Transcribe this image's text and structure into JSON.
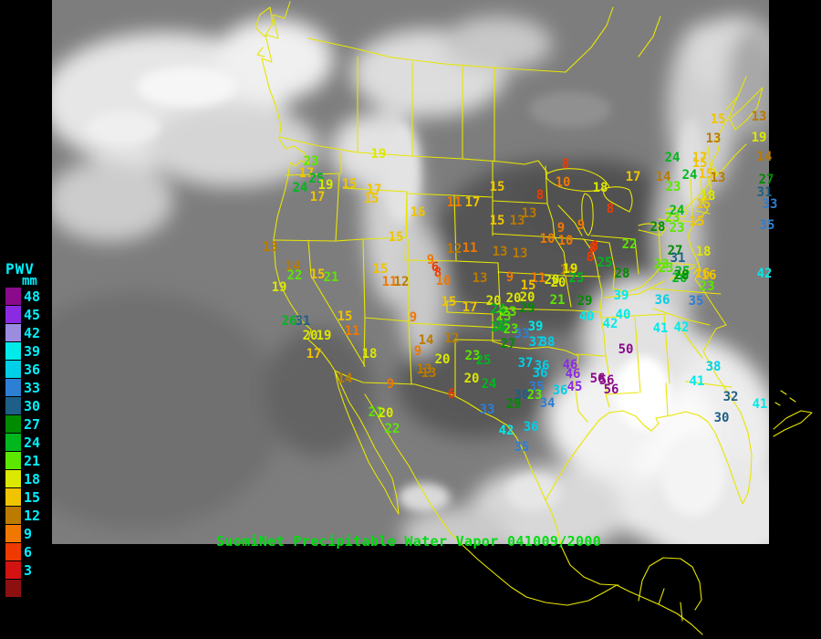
{
  "title_bar": {
    "text": "SuomiNet Precipitable Water Vapor 041009/2000",
    "color": "#00dd11"
  },
  "legend": {
    "title": "PWV",
    "unit": "mm",
    "label_color": "#00f0ff",
    "entries": [
      {
        "value": 48,
        "color": "#8b0a8b"
      },
      {
        "value": 45,
        "color": "#8a2be2"
      },
      {
        "value": 42,
        "color": "#9b8ce0"
      },
      {
        "value": 39,
        "color": "#00eaea"
      },
      {
        "value": 36,
        "color": "#00cfe8"
      },
      {
        "value": 33,
        "color": "#2d7fd4"
      },
      {
        "value": 30,
        "color": "#1d5f86"
      },
      {
        "value": 27,
        "color": "#008c00"
      },
      {
        "value": 24,
        "color": "#00b71e"
      },
      {
        "value": 21,
        "color": "#5ce600"
      },
      {
        "value": 18,
        "color": "#dce800"
      },
      {
        "value": 15,
        "color": "#f0c400"
      },
      {
        "value": 12,
        "color": "#bb7a00"
      },
      {
        "value": 9,
        "color": "#f07800"
      },
      {
        "value": 6,
        "color": "#ee3a00"
      },
      {
        "value": 3,
        "color": "#d31212"
      }
    ],
    "terminal_color": "#8c1010"
  },
  "map": {
    "border_color": "#e8e600",
    "stations": [
      [
        19,
        415,
        169
      ],
      [
        23,
        341,
        177
      ],
      [
        17,
        336,
        190
      ],
      [
        25,
        347,
        196
      ],
      [
        24,
        329,
        206
      ],
      [
        19,
        357,
        203
      ],
      [
        15,
        383,
        202
      ],
      [
        17,
        410,
        208
      ],
      [
        17,
        348,
        216
      ],
      [
        15,
        407,
        218
      ],
      [
        16,
        458,
        233
      ],
      [
        15,
        434,
        260
      ],
      [
        13,
        296,
        271
      ],
      [
        15,
        545,
        205
      ],
      [
        8,
        620,
        180
      ],
      [
        10,
        617,
        200
      ],
      [
        8,
        592,
        214
      ],
      [
        11,
        498,
        222
      ],
      [
        17,
        518,
        222
      ],
      [
        13,
        580,
        234
      ],
      [
        15,
        545,
        242
      ],
      [
        13,
        567,
        242
      ],
      [
        9,
        615,
        250
      ],
      [
        9,
        637,
        247
      ],
      [
        10,
        600,
        262
      ],
      [
        10,
        620,
        264
      ],
      [
        12,
        498,
        273
      ],
      [
        11,
        515,
        272
      ],
      [
        13,
        548,
        276
      ],
      [
        13,
        570,
        278
      ],
      [
        8,
        652,
        270
      ],
      [
        22,
        690,
        268
      ],
      [
        18,
        658,
        206
      ],
      [
        17,
        694,
        194
      ],
      [
        9,
        472,
        285
      ],
      [
        6,
        477,
        293
      ],
      [
        8,
        480,
        299
      ],
      [
        10,
        486,
        308
      ],
      [
        13,
        526,
        305
      ],
      [
        9,
        559,
        304
      ],
      [
        11,
        590,
        305
      ],
      [
        15,
        579,
        313
      ],
      [
        20,
        612,
        310
      ],
      [
        14,
        622,
        296
      ],
      [
        25,
        632,
        305
      ],
      [
        20,
        605,
        307
      ],
      [
        15,
        492,
        331
      ],
      [
        17,
        515,
        337
      ],
      [
        14,
        321,
        292
      ],
      [
        22,
        323,
        302
      ],
      [
        15,
        348,
        301
      ],
      [
        21,
        363,
        304
      ],
      [
        19,
        306,
        315
      ],
      [
        15,
        417,
        295
      ],
      [
        11,
        427,
        309
      ],
      [
        12,
        440,
        309
      ],
      [
        9,
        453,
        348
      ],
      [
        15,
        378,
        347
      ],
      [
        26,
        317,
        352
      ],
      [
        31,
        332,
        352
      ],
      [
        20,
        340,
        368
      ],
      [
        19,
        355,
        368
      ],
      [
        11,
        386,
        363
      ],
      [
        17,
        344,
        388
      ],
      [
        18,
        405,
        388
      ],
      [
        14,
        378,
        415
      ],
      [
        9,
        428,
        421
      ],
      [
        13,
        465,
        405
      ],
      [
        14,
        467,
        373
      ],
      [
        9,
        458,
        385
      ],
      [
        20,
        485,
        394
      ],
      [
        12,
        495,
        371
      ],
      [
        13,
        470,
        409
      ],
      [
        20,
        517,
        415
      ],
      [
        6,
        495,
        432
      ],
      [
        21,
        412,
        452
      ],
      [
        20,
        423,
        453
      ],
      [
        22,
        430,
        470
      ],
      [
        20,
        541,
        330
      ],
      [
        20,
        563,
        327
      ],
      [
        20,
        578,
        326
      ],
      [
        21,
        611,
        329
      ],
      [
        29,
        641,
        330
      ],
      [
        39,
        681,
        324
      ],
      [
        24,
        546,
        339
      ],
      [
        23,
        558,
        342
      ],
      [
        29,
        578,
        338
      ],
      [
        23,
        552,
        347
      ],
      [
        26,
        546,
        359
      ],
      [
        25,
        552,
        357
      ],
      [
        23,
        560,
        361
      ],
      [
        39,
        587,
        358
      ],
      [
        33,
        572,
        366
      ],
      [
        37,
        588,
        375
      ],
      [
        38,
        600,
        375
      ],
      [
        27,
        557,
        377
      ],
      [
        40,
        643,
        347
      ],
      [
        40,
        683,
        345
      ],
      [
        42,
        669,
        355
      ],
      [
        50,
        686,
        383
      ],
      [
        23,
        518,
        390
      ],
      [
        25,
        530,
        395
      ],
      [
        37,
        576,
        398
      ],
      [
        36,
        594,
        401
      ],
      [
        36,
        592,
        409
      ],
      [
        46,
        625,
        400
      ],
      [
        46,
        628,
        410
      ],
      [
        56,
        655,
        415
      ],
      [
        56,
        665,
        417
      ],
      [
        56,
        670,
        427
      ],
      [
        45,
        630,
        424
      ],
      [
        35,
        588,
        424
      ],
      [
        36,
        614,
        428
      ],
      [
        30,
        572,
        433
      ],
      [
        23,
        586,
        433
      ],
      [
        34,
        600,
        442
      ],
      [
        29,
        563,
        443
      ],
      [
        33,
        534,
        449
      ],
      [
        36,
        582,
        468
      ],
      [
        42,
        555,
        472
      ],
      [
        35,
        572,
        490
      ],
      [
        24,
        536,
        421
      ],
      [
        15,
        787,
        131
      ],
      [
        13,
        782,
        152
      ],
      [
        24,
        737,
        173
      ],
      [
        17,
        767,
        173
      ],
      [
        15,
        767,
        179
      ],
      [
        24,
        756,
        192
      ],
      [
        15,
        774,
        191
      ],
      [
        13,
        787,
        195
      ],
      [
        14,
        727,
        194
      ],
      [
        23,
        738,
        205
      ],
      [
        18,
        776,
        215
      ],
      [
        15,
        771,
        224
      ],
      [
        24,
        742,
        231
      ],
      [
        23,
        737,
        239
      ],
      [
        15,
        764,
        243
      ],
      [
        8,
        669,
        229
      ],
      [
        28,
        721,
        249
      ],
      [
        23,
        742,
        250
      ],
      [
        27,
        740,
        275
      ],
      [
        31,
        743,
        283
      ],
      [
        18,
        771,
        276
      ],
      [
        8,
        650,
        272
      ],
      [
        8,
        647,
        282
      ],
      [
        25,
        663,
        288
      ],
      [
        23,
        725,
        290
      ],
      [
        28,
        682,
        300
      ],
      [
        25,
        748,
        298
      ],
      [
        26,
        745,
        305
      ],
      [
        19,
        625,
        295
      ],
      [
        16,
        770,
        300
      ],
      [
        23,
        730,
        294
      ],
      [
        28,
        747,
        302
      ],
      [
        16,
        777,
        302
      ],
      [
        23,
        775,
        314
      ],
      [
        36,
        726,
        329
      ],
      [
        35,
        763,
        330
      ],
      [
        41,
        724,
        360
      ],
      [
        42,
        747,
        359
      ],
      [
        38,
        782,
        402
      ],
      [
        41,
        764,
        418
      ],
      [
        32,
        801,
        435
      ],
      [
        30,
        791,
        458
      ],
      [
        41,
        833,
        443
      ],
      [
        13,
        832,
        128
      ],
      [
        19,
        832,
        151
      ],
      [
        14,
        838,
        172
      ],
      [
        27,
        840,
        197
      ],
      [
        31,
        838,
        211
      ],
      [
        33,
        844,
        224
      ],
      [
        35,
        841,
        247
      ],
      [
        42,
        838,
        300
      ]
    ]
  }
}
